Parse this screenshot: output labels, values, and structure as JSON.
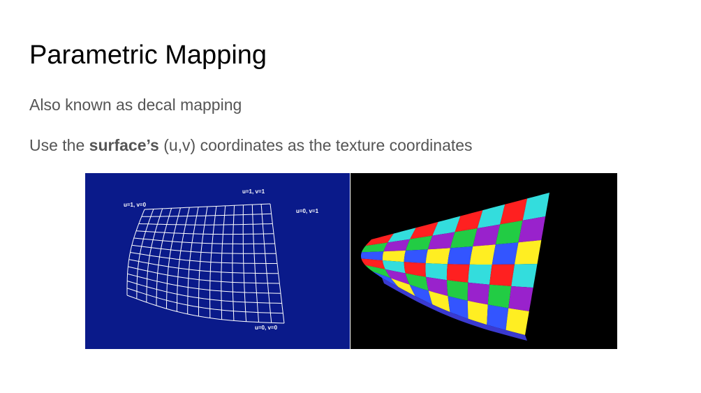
{
  "slide": {
    "title": "Parametric Mapping",
    "line1": "Also known as decal mapping",
    "line2_prefix": "Use the ",
    "line2_bold": "surface’s",
    "line2_suffix": " (u,v) coordinates as the texture coordinates"
  },
  "figure": {
    "wireframe_labels": {
      "u1v0": "u=1, v=0",
      "u1v1": "u=1, v=1",
      "u0v1": "u=0, v=1",
      "u0v0": "u=0, v=0"
    },
    "checker_colors": [
      "#ff2020",
      "#ffee22",
      "#22cc44",
      "#33dddd",
      "#3355ff",
      "#9922cc"
    ],
    "wire_bg": "#0a1a8a",
    "tex_bg": "#000000"
  }
}
